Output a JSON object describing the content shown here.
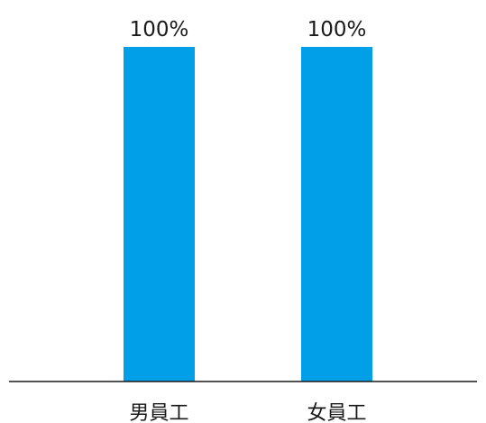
{
  "chart_data": {
    "type": "bar",
    "categories": [
      "男員工",
      "女員工"
    ],
    "values": [
      100,
      100
    ],
    "data_labels": [
      "100%",
      "100%"
    ],
    "ylim": [
      0,
      100
    ],
    "grid": false,
    "legend": "none",
    "colors": {
      "bar": "#009FE8",
      "axis": "#1a1a1a",
      "text": "#1a1a1a"
    }
  }
}
